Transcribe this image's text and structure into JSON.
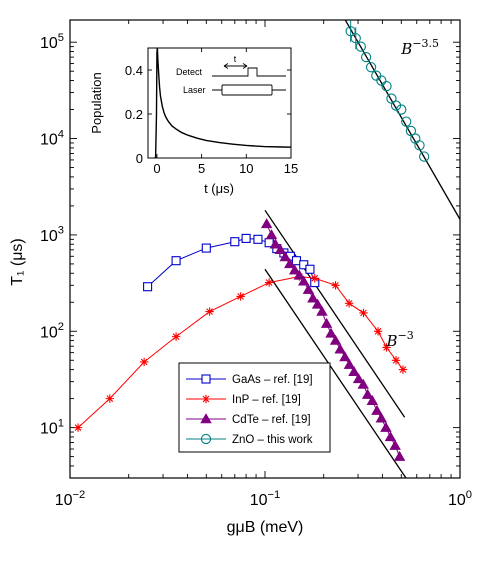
{
  "chart_data": [
    {
      "type": "scatter",
      "title": "",
      "xlabel": "gμB (meV)",
      "ylabel": "T₁ (μs)",
      "xscale": "log",
      "yscale": "log",
      "xlim": [
        0.01,
        1
      ],
      "ylim": [
        3,
        170000
      ],
      "x_ticks": [
        0.01,
        0.1,
        1
      ],
      "y_ticks": [
        10,
        100,
        1000,
        10000,
        100000
      ],
      "x_tick_labels": [
        {
          "base": "10",
          "exp": "−2"
        },
        {
          "base": "10",
          "exp": "−1"
        },
        {
          "base": "10",
          "exp": "0"
        }
      ],
      "y_tick_labels": [
        {
          "base": "10",
          "exp": "1"
        },
        {
          "base": "10",
          "exp": "2"
        },
        {
          "base": "10",
          "exp": "3"
        },
        {
          "base": "10",
          "exp": "4"
        },
        {
          "base": "10",
          "exp": "5"
        }
      ],
      "grid": false,
      "legend_position": "bottom-center",
      "series": [
        {
          "name": "GaAs – ref. [19]",
          "color": "#0000cc",
          "marker": "square",
          "x": [
            0.025,
            0.035,
            0.05,
            0.07,
            0.08,
            0.092,
            0.105,
            0.115,
            0.125,
            0.135,
            0.145,
            0.158,
            0.17,
            0.18
          ],
          "y": [
            290,
            540,
            730,
            850,
            920,
            900,
            830,
            720,
            650,
            600,
            540,
            490,
            440,
            320
          ]
        },
        {
          "name": "InP – ref. [19]",
          "color": "#ff0000",
          "marker": "asterisk",
          "x": [
            0.011,
            0.016,
            0.024,
            0.035,
            0.052,
            0.075,
            0.105,
            0.15,
            0.18,
            0.23,
            0.27,
            0.32,
            0.38,
            0.42,
            0.47,
            0.51
          ],
          "y": [
            10,
            20,
            48,
            88,
            160,
            230,
            320,
            370,
            355,
            300,
            195,
            155,
            100,
            68,
            50,
            40
          ]
        },
        {
          "name": "CdTe – ref. [19]",
          "color": "#800080",
          "marker": "triangle",
          "x": [
            0.102,
            0.108,
            0.113,
            0.12,
            0.127,
            0.134,
            0.142,
            0.15,
            0.158,
            0.167,
            0.176,
            0.186,
            0.196,
            0.207,
            0.218,
            0.23,
            0.243,
            0.257,
            0.271,
            0.286,
            0.302,
            0.319,
            0.336,
            0.355,
            0.375,
            0.395,
            0.417,
            0.44,
            0.465,
            0.49
          ],
          "y": [
            1300,
            1000,
            800,
            700,
            590,
            500,
            430,
            380,
            330,
            270,
            220,
            190,
            160,
            120,
            95,
            80,
            65,
            54,
            45,
            38,
            32,
            28,
            22,
            19,
            15,
            12.5,
            10,
            8,
            6.5,
            5
          ]
        },
        {
          "name": "ZnO – this work",
          "color": "#008080",
          "marker": "circle",
          "x": [
            0.275,
            0.292,
            0.31,
            0.33,
            0.35,
            0.372,
            0.395,
            0.42,
            0.445,
            0.47,
            0.5,
            0.53,
            0.56,
            0.59,
            0.62,
            0.655
          ],
          "y": [
            130000,
            110000,
            90000,
            70000,
            55000,
            45000,
            40000,
            35000,
            26000,
            22000,
            20000,
            15000,
            12000,
            10000,
            8500,
            6500
          ]
        }
      ],
      "fit_lines": [
        {
          "label": "B⁻³",
          "x": [
            0.1,
            0.52
          ],
          "y": [
            1800,
            12.8
          ]
        },
        {
          "label": "B⁻³",
          "x": [
            0.1,
            0.75
          ],
          "y": [
            440,
            1.05
          ]
        },
        {
          "label": "B⁻³·⁵",
          "x": [
            0.25,
            1.0
          ],
          "y": [
            190000,
            1450
          ]
        }
      ],
      "annotations": [
        {
          "text_base": "B",
          "text_exp": "−3.5",
          "x": 0.5,
          "y": 75000
        },
        {
          "text_base": "B",
          "text_exp": "−3",
          "x": 0.42,
          "y": 70
        }
      ]
    },
    {
      "type": "line",
      "title": "",
      "xlabel": "t (μs)",
      "ylabel": "Population",
      "xlim": [
        -1,
        15
      ],
      "ylim": [
        0,
        0.5
      ],
      "x_ticks": [
        0,
        5,
        10,
        15
      ],
      "y_ticks": [
        0,
        0.2,
        0.4
      ],
      "x_tick_labels": [
        "0",
        "5",
        "10",
        "15"
      ],
      "y_tick_labels": [
        "0",
        "0.2",
        "0.4"
      ],
      "grid": false,
      "series": [
        {
          "color": "#000000",
          "x": [
            -0.3,
            -0.15,
            -0.05,
            0.0,
            0.05,
            0.1,
            0.2,
            0.3,
            0.4,
            0.6,
            0.8,
            1.0,
            1.3,
            1.7,
            2.2,
            2.8,
            3.5,
            4.5,
            5.5,
            7,
            8.5,
            10,
            12,
            14,
            15
          ],
          "y": [
            0.0,
            0.0,
            0.2,
            0.48,
            0.5,
            0.45,
            0.38,
            0.32,
            0.28,
            0.235,
            0.205,
            0.185,
            0.165,
            0.145,
            0.13,
            0.115,
            0.103,
            0.09,
            0.08,
            0.07,
            0.063,
            0.057,
            0.052,
            0.05,
            0.049
          ]
        }
      ],
      "pulse_labels": [
        "Detect",
        "Laser"
      ],
      "delay_label": "t"
    }
  ]
}
